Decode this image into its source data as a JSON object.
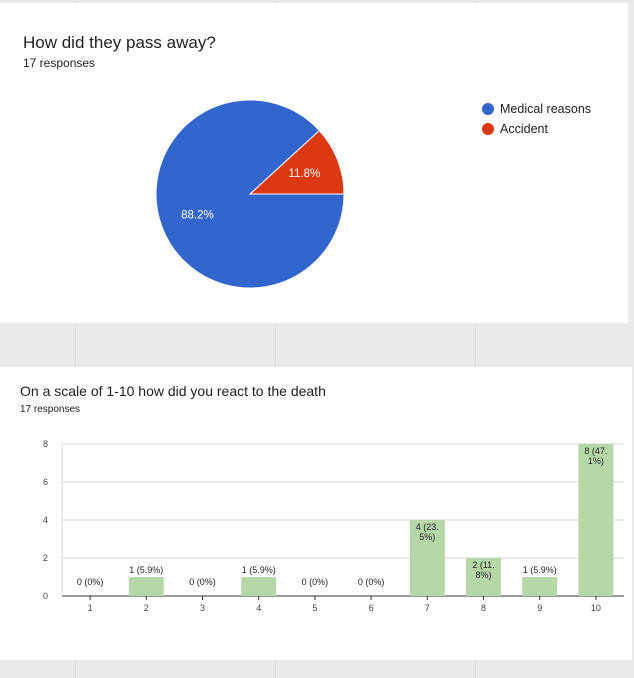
{
  "pie_card": {
    "title": "How did they pass away?",
    "responses": "17 responses"
  },
  "bar_card": {
    "title": "On a scale of 1-10 how did you react to the death",
    "responses": "17 responses"
  },
  "chart_data": [
    {
      "type": "pie",
      "title": "How did they pass away?",
      "categories": [
        "Medical reasons",
        "Accident"
      ],
      "values": [
        88.2,
        11.8
      ],
      "labels": [
        "88.2%",
        "11.8%"
      ],
      "colors": [
        "#3366cc",
        "#dc3912"
      ],
      "legend": "right"
    },
    {
      "type": "bar",
      "title": "On a scale of 1-10 how did you react to the death",
      "categories": [
        "1",
        "2",
        "3",
        "4",
        "5",
        "6",
        "7",
        "8",
        "9",
        "10"
      ],
      "values": [
        0,
        1,
        0,
        1,
        0,
        0,
        4,
        2,
        1,
        8
      ],
      "data_labels": [
        [
          "0 (0%)"
        ],
        [
          "1 (5.9%)"
        ],
        [
          "0 (0%)"
        ],
        [
          "1 (5.9%)"
        ],
        [
          "0 (0%)"
        ],
        [
          "0 (0%)"
        ],
        [
          "4 (23.",
          "5%)"
        ],
        [
          "2 (11.",
          "8%)"
        ],
        [
          "1 (5.9%)"
        ],
        [
          "8 (47.",
          "1%)"
        ]
      ],
      "yticks": [
        0,
        2,
        4,
        6,
        8
      ],
      "ylim": [
        0,
        8
      ],
      "bar_color": "#b6d7a8",
      "grid": true
    }
  ]
}
